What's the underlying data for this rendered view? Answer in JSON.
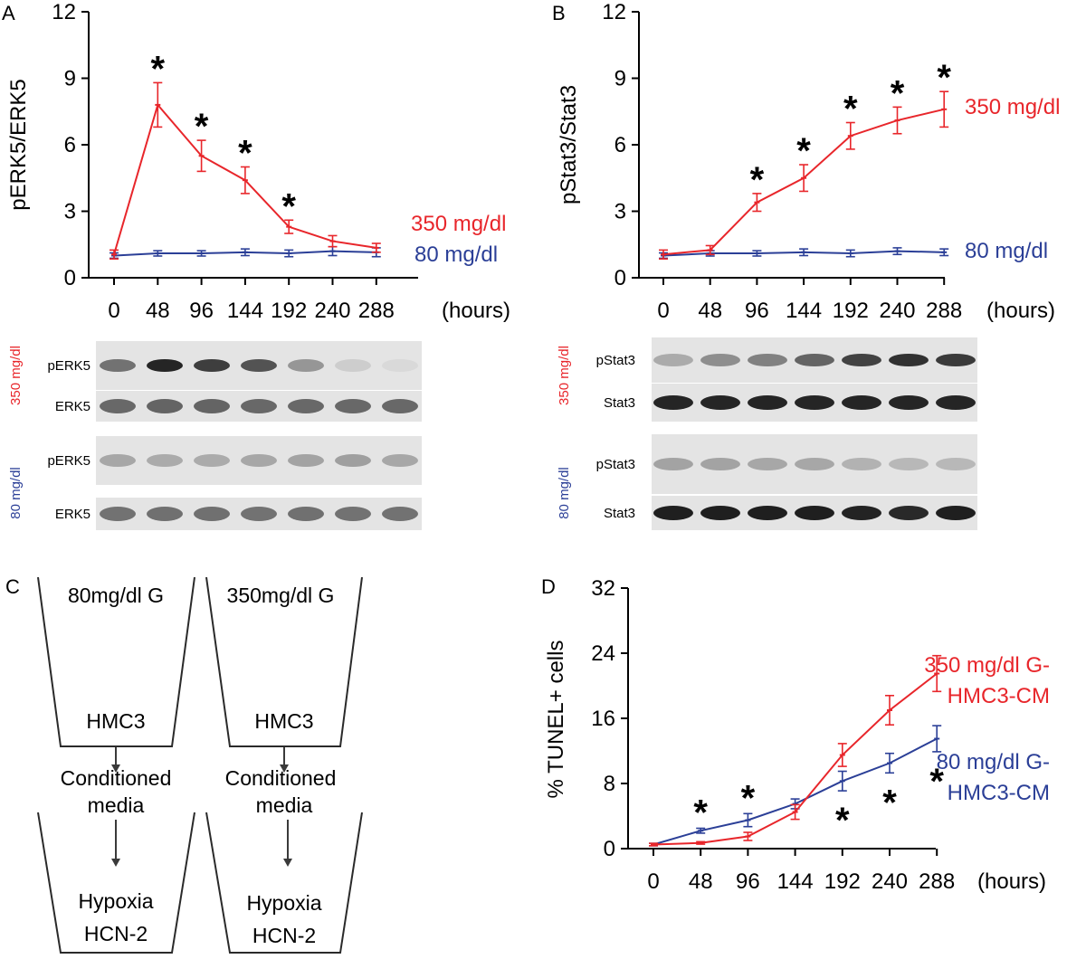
{
  "panel_labels": {
    "A": "A",
    "B": "B",
    "C": "C",
    "D": "D"
  },
  "colors": {
    "red": "#e8262b",
    "blue": "#2b3f97",
    "axis": "#000000"
  },
  "chart_data": [
    {
      "id": "A",
      "type": "line",
      "ylabel": "pERK5/ERK5",
      "xunit": "(hours)",
      "x": [
        0,
        48,
        96,
        144,
        192,
        240,
        288
      ],
      "xticks": [
        "0",
        "48",
        "96",
        "144",
        "192",
        "240",
        "288"
      ],
      "yticks": [
        "0",
        "3",
        "6",
        "9",
        "12"
      ],
      "ylim": [
        0,
        12
      ],
      "series": [
        {
          "name": "350 mg/dl",
          "color": "#e8262b",
          "values": [
            1.05,
            7.8,
            5.5,
            4.4,
            2.3,
            1.65,
            1.35
          ],
          "err": [
            0.2,
            1.0,
            0.7,
            0.6,
            0.3,
            0.25,
            0.2
          ]
        },
        {
          "name": "80 mg/dl",
          "color": "#2b3f97",
          "values": [
            1.0,
            1.1,
            1.1,
            1.15,
            1.1,
            1.2,
            1.15
          ],
          "err": [
            0.12,
            0.12,
            0.12,
            0.15,
            0.15,
            0.2,
            0.2
          ]
        }
      ],
      "stars": [
        48,
        96,
        144,
        192
      ],
      "star_symbol": "*"
    },
    {
      "id": "B",
      "type": "line",
      "ylabel": "pStat3/Stat3",
      "xunit": "(hours)",
      "x": [
        0,
        48,
        96,
        144,
        192,
        240,
        288
      ],
      "xticks": [
        "0",
        "48",
        "96",
        "144",
        "192",
        "240",
        "288"
      ],
      "yticks": [
        "0",
        "3",
        "6",
        "9",
        "12"
      ],
      "ylim": [
        0,
        12
      ],
      "series": [
        {
          "name": "350 mg/dl",
          "color": "#e8262b",
          "values": [
            1.05,
            1.25,
            3.4,
            4.5,
            6.4,
            7.1,
            7.6
          ],
          "err": [
            0.2,
            0.2,
            0.4,
            0.6,
            0.6,
            0.6,
            0.8
          ]
        },
        {
          "name": "80 mg/dl",
          "color": "#2b3f97",
          "values": [
            1.0,
            1.1,
            1.1,
            1.15,
            1.1,
            1.2,
            1.15
          ],
          "err": [
            0.12,
            0.12,
            0.12,
            0.15,
            0.15,
            0.15,
            0.15
          ]
        }
      ],
      "stars": [
        96,
        144,
        192,
        240,
        288
      ],
      "star_symbol": "*"
    },
    {
      "id": "D",
      "type": "line",
      "ylabel": "% TUNEL+ cells",
      "xunit": "(hours)",
      "x": [
        0,
        48,
        96,
        144,
        192,
        240,
        288
      ],
      "xticks": [
        "0",
        "48",
        "96",
        "144",
        "192",
        "240",
        "288"
      ],
      "yticks": [
        "0",
        "8",
        "16",
        "24",
        "32"
      ],
      "ylim": [
        0,
        32
      ],
      "series": [
        {
          "name": "350 mg/dl G-HMC3-CM",
          "label_lines": [
            "350 mg/dl G-",
            "HMC3-CM"
          ],
          "color": "#e8262b",
          "values": [
            0.5,
            0.7,
            1.5,
            4.5,
            11.5,
            17.0,
            21.5
          ],
          "err": [
            0.15,
            0.15,
            0.5,
            0.9,
            1.4,
            1.8,
            2.2
          ]
        },
        {
          "name": "80 mg/dl G-HMC3-CM",
          "label_lines": [
            "80 mg/dl G-",
            "HMC3-CM"
          ],
          "color": "#2b3f97",
          "values": [
            0.5,
            2.2,
            3.5,
            5.5,
            8.3,
            10.5,
            13.5
          ],
          "err": [
            0.15,
            0.3,
            0.8,
            0.6,
            1.2,
            1.2,
            1.6
          ]
        }
      ],
      "stars_low": [
        48,
        96
      ],
      "stars_high": [
        192,
        240,
        288
      ],
      "star_symbol": "*"
    }
  ],
  "blots": {
    "A": {
      "cond_high": "350 mg/dl",
      "cond_low": "80 mg/dl",
      "rows": [
        {
          "label": "pERK5",
          "intensity": [
            0.55,
            0.92,
            0.8,
            0.7,
            0.38,
            0.12,
            0.06
          ]
        },
        {
          "label": "ERK5",
          "intensity": [
            0.6,
            0.62,
            0.62,
            0.6,
            0.6,
            0.6,
            0.6
          ]
        },
        {
          "label": "pERK5",
          "intensity": [
            0.3,
            0.28,
            0.28,
            0.3,
            0.32,
            0.34,
            0.3
          ]
        },
        {
          "label": "ERK5",
          "intensity": [
            0.55,
            0.56,
            0.56,
            0.55,
            0.56,
            0.55,
            0.55
          ]
        }
      ]
    },
    "B": {
      "cond_high": "350 mg/dl",
      "cond_low": "80 mg/dl",
      "rows": [
        {
          "label": "pStat3",
          "intensity": [
            0.28,
            0.42,
            0.48,
            0.62,
            0.78,
            0.86,
            0.82
          ]
        },
        {
          "label": "Stat3",
          "intensity": [
            0.92,
            0.92,
            0.92,
            0.92,
            0.92,
            0.92,
            0.92
          ]
        },
        {
          "label": "pStat3",
          "intensity": [
            0.32,
            0.32,
            0.3,
            0.3,
            0.25,
            0.22,
            0.22
          ]
        },
        {
          "label": "Stat3",
          "intensity": [
            0.95,
            0.95,
            0.95,
            0.95,
            0.93,
            0.9,
            0.95
          ]
        }
      ]
    }
  },
  "diagram": {
    "left": {
      "top_text": "80mg/dl G",
      "cell_text": "HMC3",
      "mid_lines": [
        "Conditioned",
        "media"
      ],
      "bottom_lines": [
        "Hypoxia",
        "HCN-2"
      ]
    },
    "right": {
      "top_text": "350mg/dl G",
      "cell_text": "HMC3",
      "mid_lines": [
        "Conditioned",
        "media"
      ],
      "bottom_lines": [
        "Hypoxia",
        "HCN-2"
      ]
    }
  }
}
